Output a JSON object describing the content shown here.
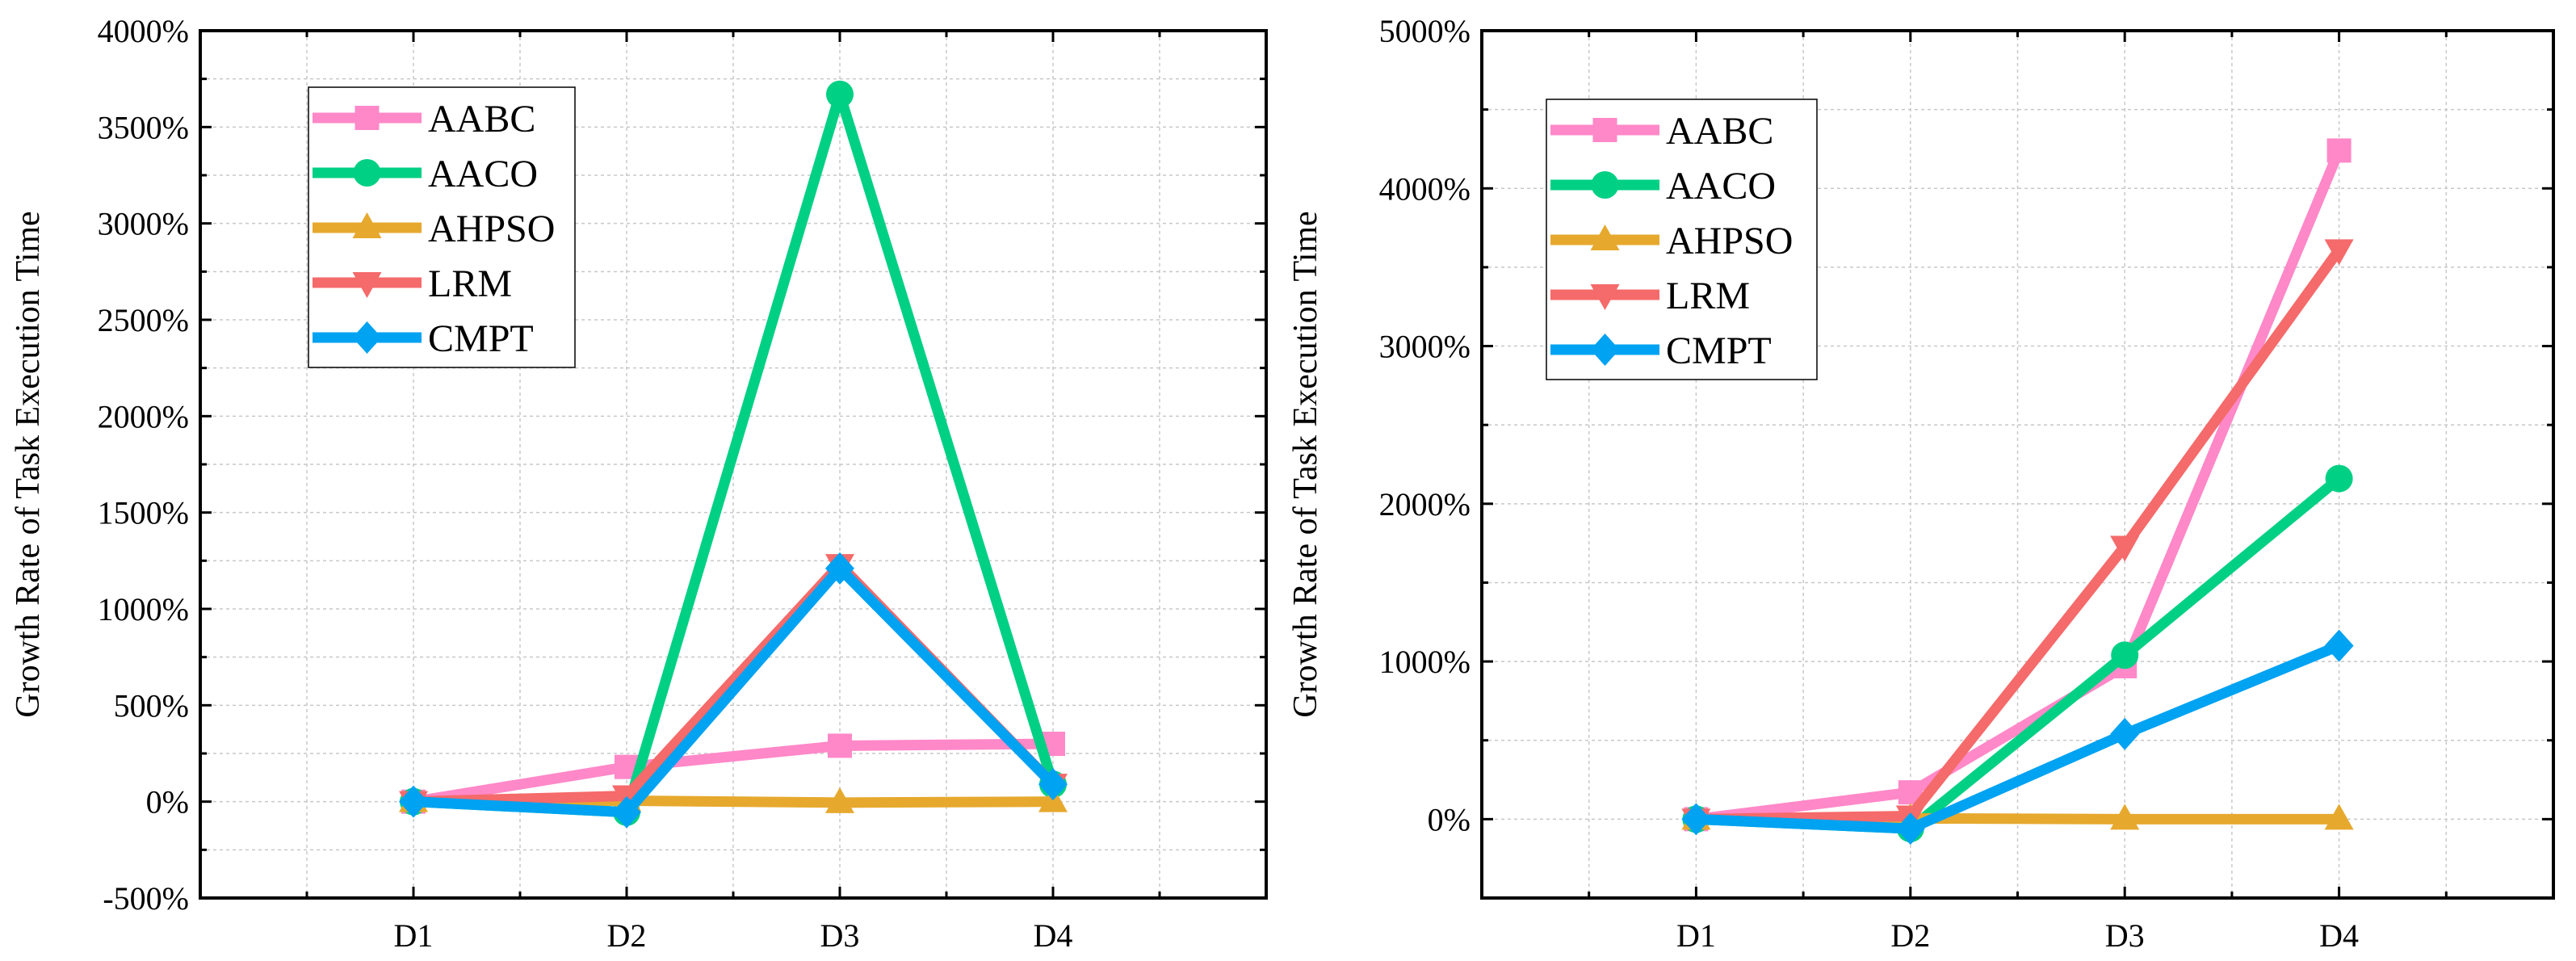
{
  "chart_data": [
    {
      "type": "line",
      "title": "",
      "xlabel": "",
      "ylabel": "Growth Rate of Task Execution Time",
      "categories": [
        "D1",
        "D2",
        "D3",
        "D4"
      ],
      "ylim": [
        -500,
        4000
      ],
      "yticks": [
        -500,
        0,
        500,
        1000,
        1500,
        2000,
        2500,
        3000,
        3500,
        4000
      ],
      "ytick_labels": [
        "-500%",
        "0%",
        "500%",
        "1000%",
        "1500%",
        "2000%",
        "2500%",
        "3000%",
        "3500%",
        "4000%"
      ],
      "grid": true,
      "legend": "top-left",
      "series": [
        {
          "name": "AABC",
          "color": "#ff88c8",
          "marker": "square",
          "values": [
            0,
            180,
            290,
            300
          ]
        },
        {
          "name": "AACO",
          "color": "#00d084",
          "marker": "circle",
          "values": [
            0,
            -55,
            3670,
            90
          ]
        },
        {
          "name": "AHPSO",
          "color": "#e6a92e",
          "marker": "triangle-up",
          "values": [
            0,
            5,
            -5,
            0
          ]
        },
        {
          "name": "LRM",
          "color": "#f56a6a",
          "marker": "triangle-down",
          "values": [
            0,
            30,
            1230,
            90
          ]
        },
        {
          "name": "CMPT",
          "color": "#00a2f2",
          "marker": "diamond",
          "values": [
            0,
            -55,
            1210,
            90
          ]
        }
      ]
    },
    {
      "type": "line",
      "title": "",
      "xlabel": "",
      "ylabel": "Growth Rate of Task Execution Time",
      "categories": [
        "D1",
        "D2",
        "D3",
        "D4"
      ],
      "ylim": [
        -500,
        5000
      ],
      "yticks": [
        0,
        1000,
        2000,
        3000,
        4000,
        5000
      ],
      "ytick_labels": [
        "0%",
        "1000%",
        "2000%",
        "3000%",
        "4000%",
        "5000%"
      ],
      "grid": true,
      "legend": "top-left",
      "series": [
        {
          "name": "AABC",
          "color": "#ff88c8",
          "marker": "square",
          "values": [
            0,
            170,
            970,
            4240
          ]
        },
        {
          "name": "AACO",
          "color": "#00d084",
          "marker": "circle",
          "values": [
            0,
            -60,
            1040,
            2160
          ]
        },
        {
          "name": "AHPSO",
          "color": "#e6a92e",
          "marker": "triangle-up",
          "values": [
            0,
            5,
            0,
            0
          ]
        },
        {
          "name": "LRM",
          "color": "#f56a6a",
          "marker": "triangle-down",
          "values": [
            0,
            20,
            1730,
            3610
          ]
        },
        {
          "name": "CMPT",
          "color": "#00a2f2",
          "marker": "diamond",
          "values": [
            0,
            -60,
            540,
            1100
          ]
        }
      ]
    }
  ]
}
